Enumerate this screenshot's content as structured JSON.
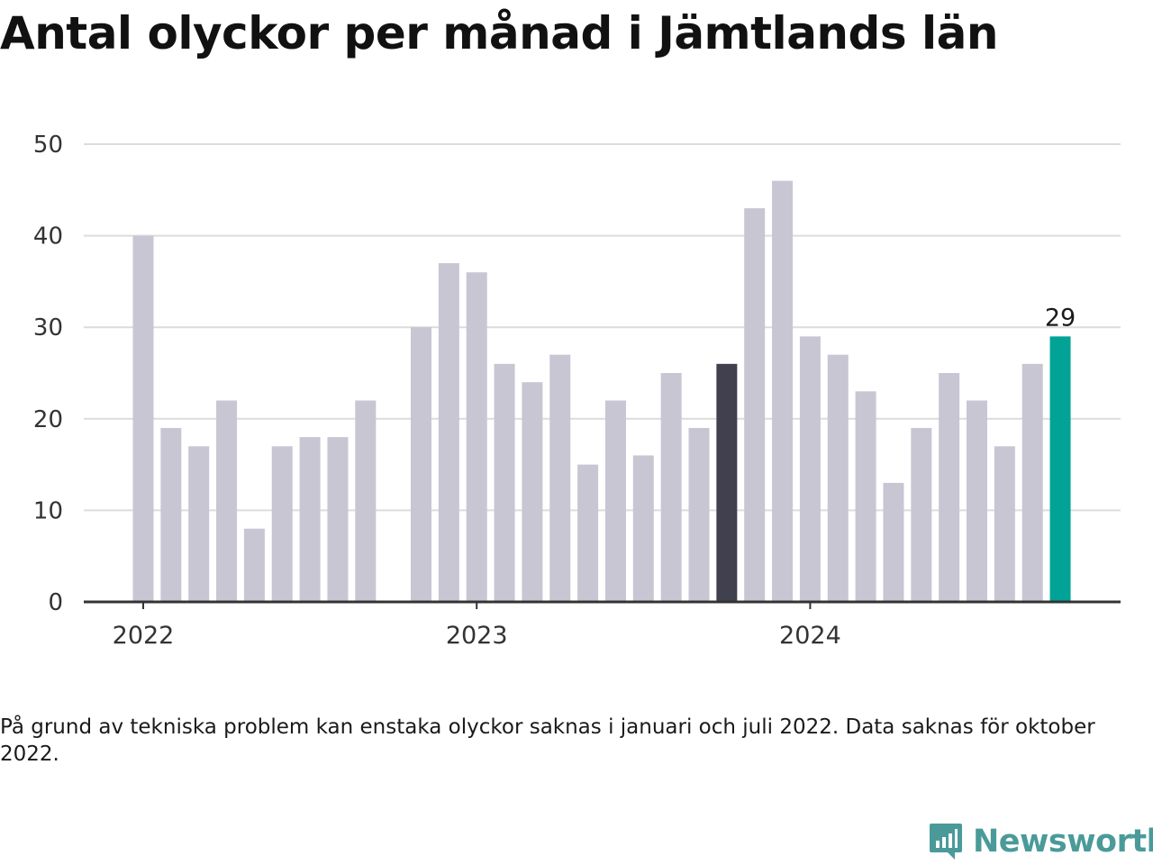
{
  "title": "Antal olyckor per månad i Jämtlands län",
  "note": "På grund av tekniska problem kan enstaka olyckor saknas i januari och juli 2022. Data saknas för oktober 2022.",
  "logo": {
    "name": "Newsworthy",
    "icon": "newsworthy-logo-icon",
    "color": "#4b9a9a"
  },
  "colors": {
    "bar": "#c8c6d3",
    "highlight_prev": "#41404e",
    "highlight_last": "#00a396",
    "grid": "#dcdcdc",
    "axis": "#333333"
  },
  "chart_data": {
    "type": "bar",
    "title": "Antal olyckor per månad i Jämtlands län",
    "xlabel": "",
    "ylabel": "",
    "ylim": [
      0,
      50
    ],
    "yticks": [
      0,
      10,
      20,
      30,
      40,
      50
    ],
    "xtick_labels": [
      {
        "label": "2022",
        "month": "2022-01"
      },
      {
        "label": "2023",
        "month": "2023-01"
      },
      {
        "label": "2024",
        "month": "2024-01"
      }
    ],
    "months": [
      "2022-01",
      "2022-02",
      "2022-03",
      "2022-04",
      "2022-05",
      "2022-06",
      "2022-07",
      "2022-08",
      "2022-09",
      "2022-10",
      "2022-11",
      "2022-12",
      "2023-01",
      "2023-02",
      "2023-03",
      "2023-04",
      "2023-05",
      "2023-06",
      "2023-07",
      "2023-08",
      "2023-09",
      "2023-10",
      "2023-11",
      "2023-12",
      "2024-01",
      "2024-02",
      "2024-03",
      "2024-04",
      "2024-05",
      "2024-06",
      "2024-07",
      "2024-08",
      "2024-09",
      "2024-10"
    ],
    "values": [
      40,
      19,
      17,
      22,
      8,
      17,
      18,
      18,
      22,
      null,
      30,
      37,
      36,
      26,
      24,
      27,
      15,
      22,
      16,
      25,
      19,
      26,
      43,
      46,
      29,
      27,
      23,
      13,
      19,
      25,
      22,
      17,
      26,
      29
    ],
    "highlight_previous_year": "2023-10",
    "highlight_latest": "2024-10",
    "data_labels": [
      {
        "month": "2024-10",
        "text": "29"
      }
    ],
    "grid": true
  }
}
